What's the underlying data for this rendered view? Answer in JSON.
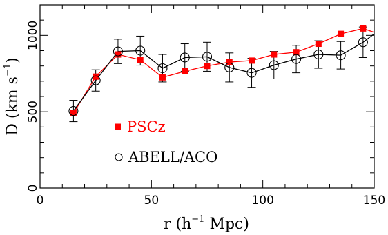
{
  "chart_data": {
    "type": "line",
    "title": "",
    "xlabel": {
      "pre": "r  (h",
      "sup": "−1",
      "post": " Mpc)"
    },
    "ylabel": {
      "pre": "D  (km  s",
      "sup": "−1",
      "post": ")"
    },
    "xlim": [
      0,
      150
    ],
    "ylim": [
      0,
      1200
    ],
    "x_ticks": [
      0,
      50,
      100,
      150
    ],
    "y_ticks": [
      0,
      500,
      1000
    ],
    "x_minor_step": 10,
    "y_minor_step": 100,
    "grid": false,
    "legend_placement": "left-middle",
    "x": [
      15,
      25,
      35,
      45,
      55,
      65,
      75,
      85,
      95,
      105,
      115,
      125,
      135,
      145
    ],
    "series": [
      {
        "name": "PSCz",
        "marker": "filled-square",
        "color": "#ff0000",
        "values": [
          490,
          730,
          875,
          840,
          725,
          765,
          800,
          825,
          835,
          875,
          890,
          945,
          1010,
          1045
        ],
        "extend_to": {
          "x": 150,
          "y": 1020
        }
      },
      {
        "name": "ABELL/ACO",
        "marker": "open-circle",
        "color": "#000000",
        "values": [
          505,
          705,
          895,
          900,
          785,
          855,
          860,
          790,
          755,
          805,
          845,
          875,
          870,
          955
        ],
        "errors": [
          70,
          70,
          80,
          95,
          90,
          90,
          95,
          95,
          95,
          90,
          90,
          90,
          90,
          100
        ],
        "extend_to": {
          "x": 150,
          "y": 1010
        }
      }
    ]
  }
}
